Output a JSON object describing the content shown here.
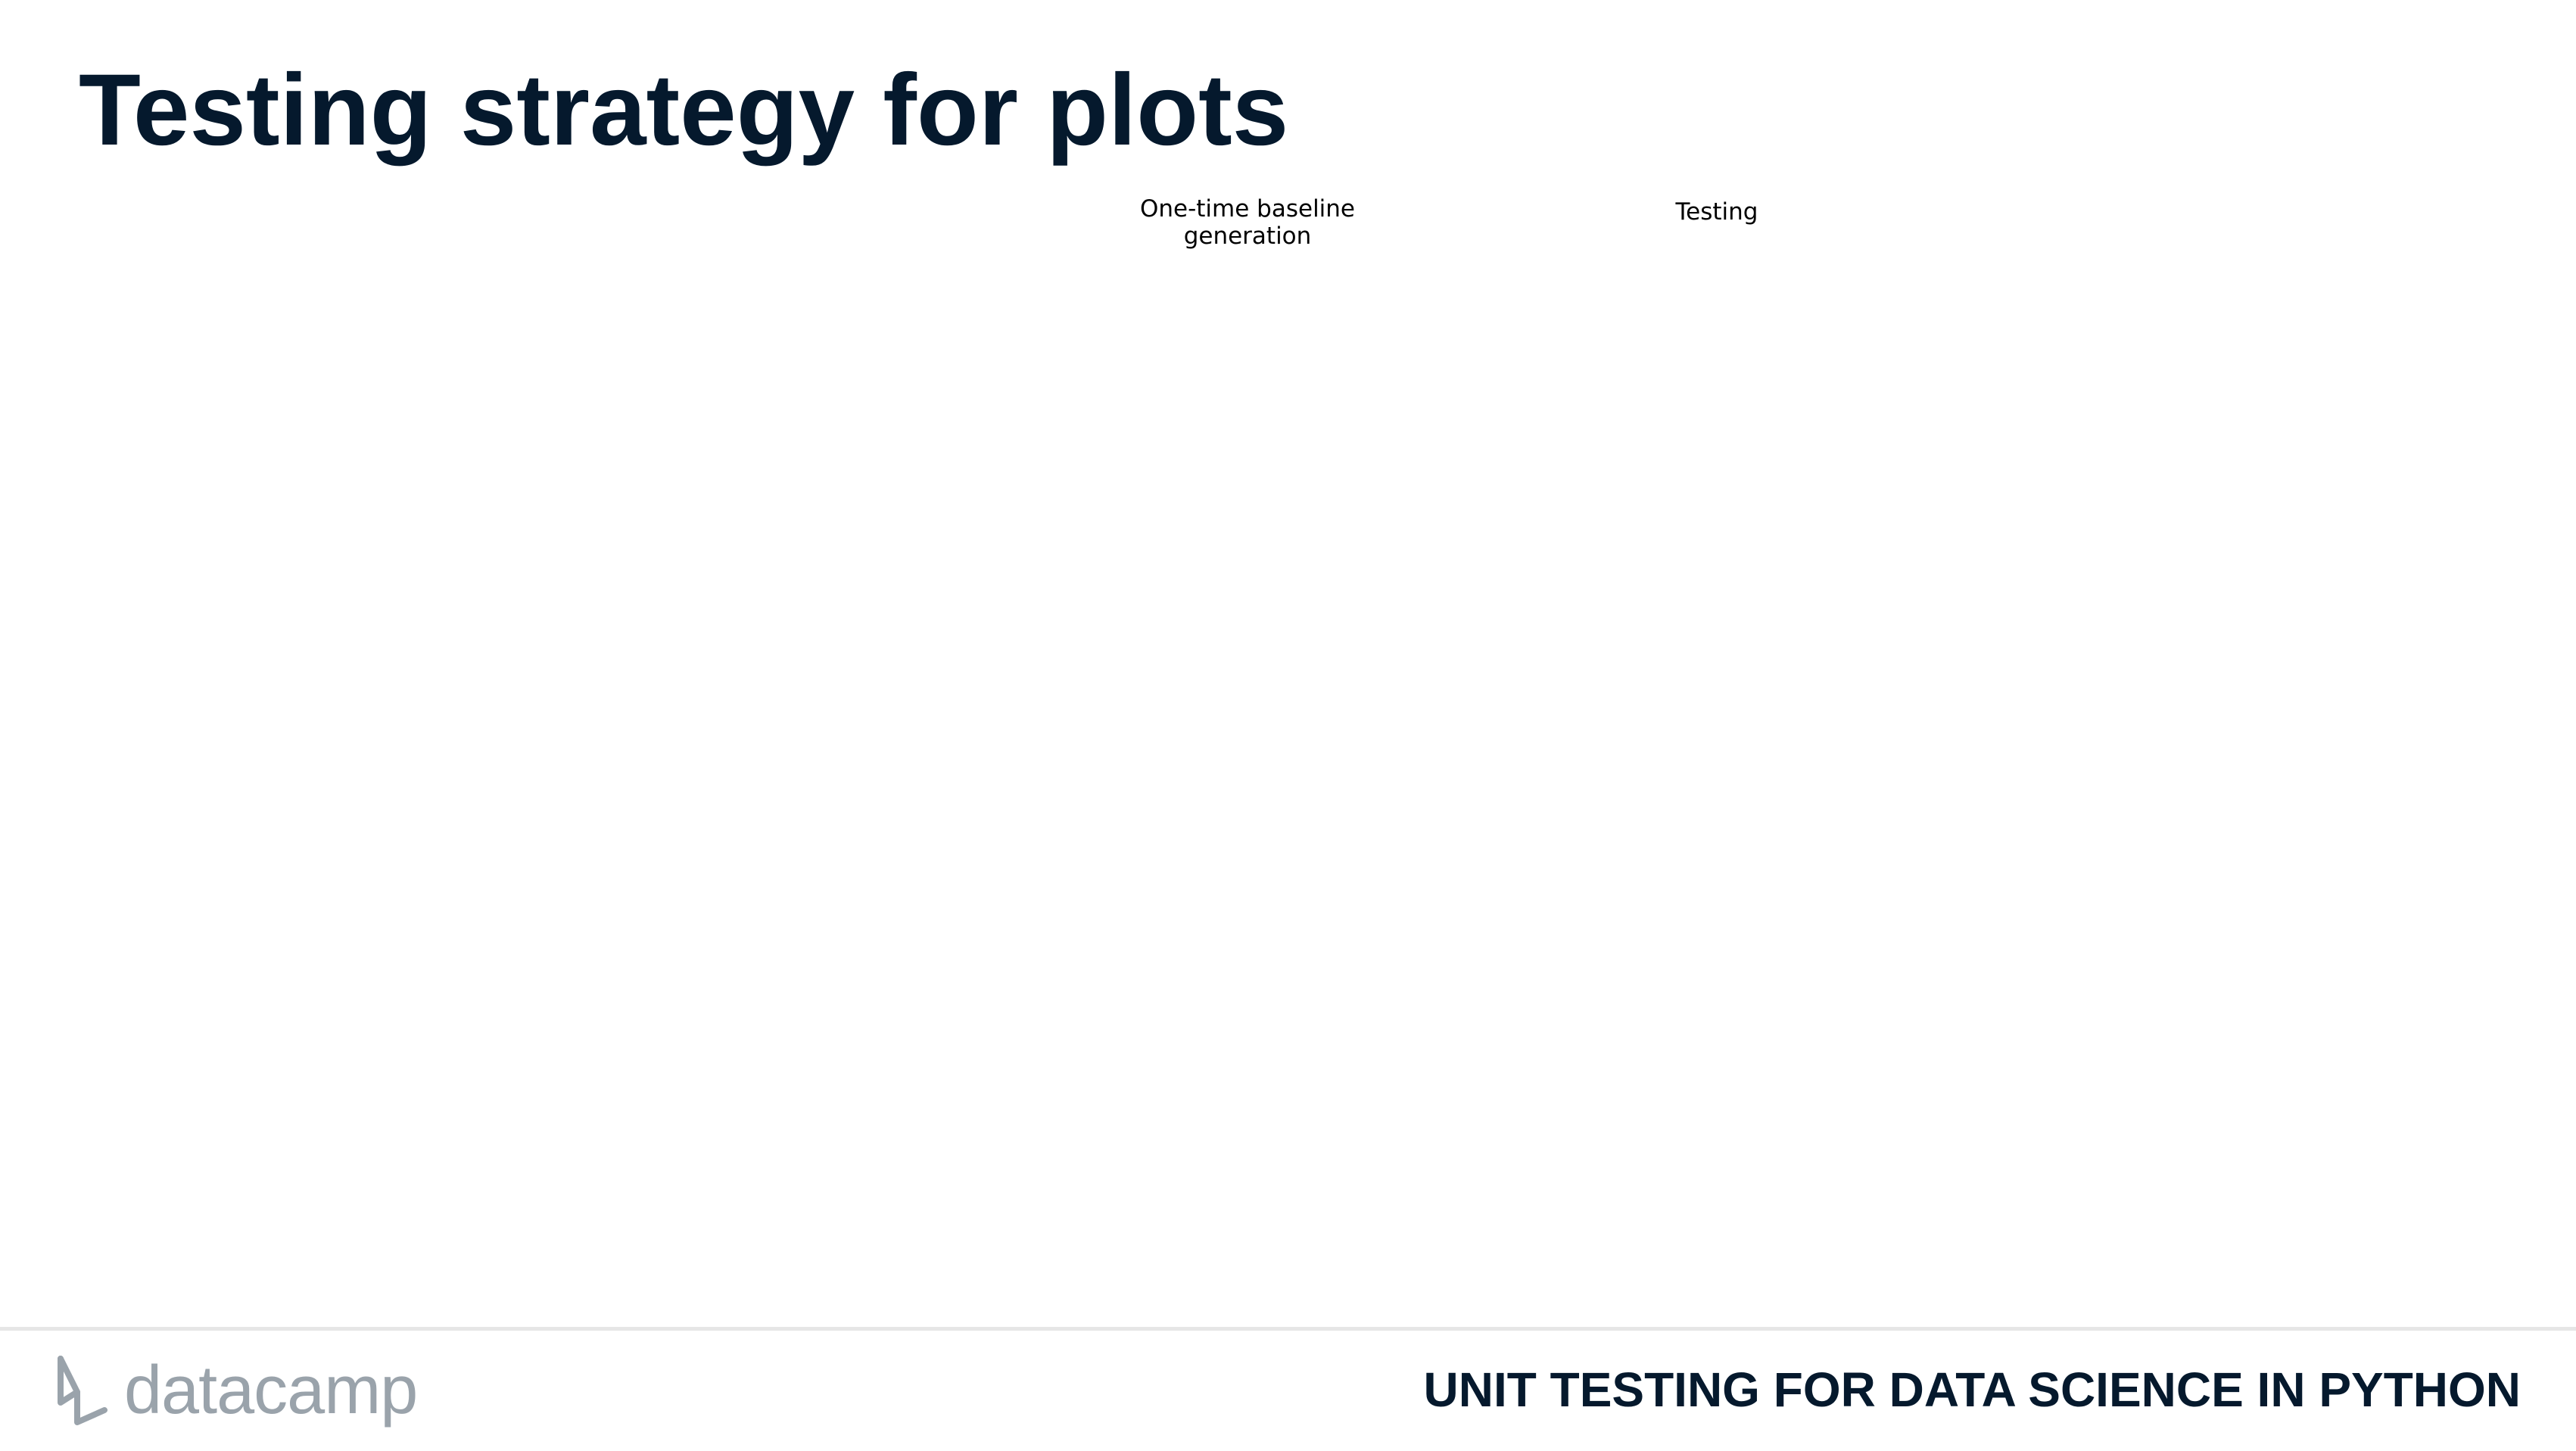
{
  "slide": {
    "title": "Testing strategy for plots",
    "columns": [
      {
        "label": "One-time baseline\ngeneration"
      },
      {
        "label": "Testing"
      }
    ]
  },
  "footer": {
    "brand": "datacamp",
    "course": "UNIT TESTING FOR DATA SCIENCE IN PYTHON",
    "logo_icon": "datacamp-logo-icon",
    "colors": {
      "title": "#05192d",
      "logo": "#9aa3ab",
      "divider": "#e6e6e6"
    }
  }
}
